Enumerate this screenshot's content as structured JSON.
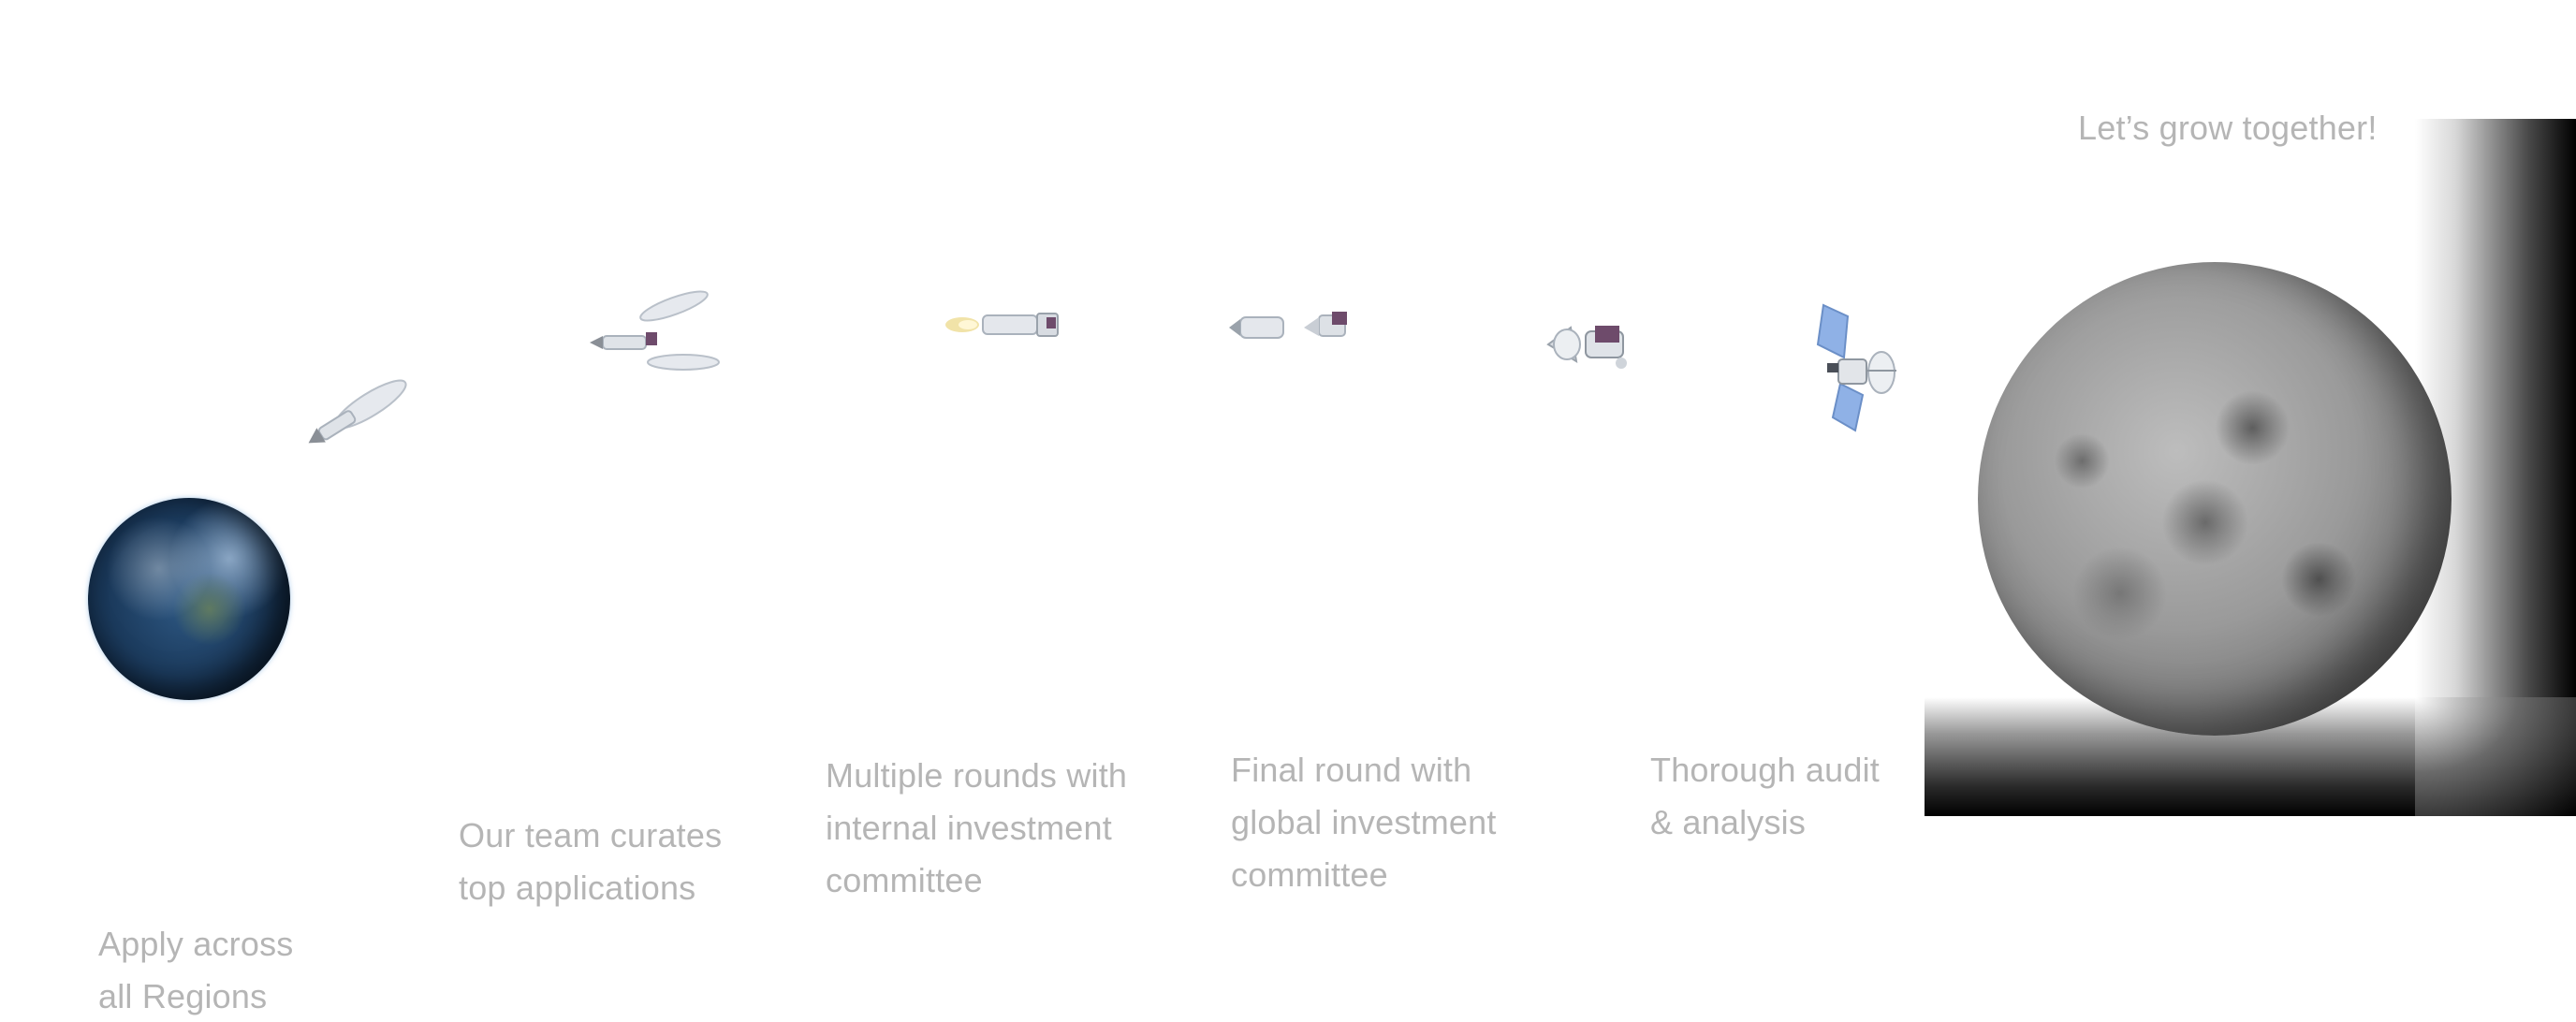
{
  "headline": "Let’s grow together!",
  "steps": [
    {
      "line1": "Apply across",
      "line2": "all Regions"
    },
    {
      "line1": "Our team curates",
      "line2": "top applications"
    },
    {
      "line1": "Multiple rounds with",
      "line2": "internal investment",
      "line3": "committee"
    },
    {
      "line1": "Final round with",
      "line2": "global investment",
      "line3": "committee"
    },
    {
      "line1": "Thorough audit",
      "line2": "& analysis"
    }
  ],
  "images": {
    "start": "earth-icon",
    "end": "moon-icon",
    "stages": [
      "rocket-icon",
      "rocket-fairing-separation-icon",
      "rocket-stage-burn-icon",
      "stage-separation-icon",
      "lander-module-icon",
      "satellite-icon"
    ]
  },
  "colors": {
    "text": "#b5b5b5",
    "background": "#ffffff",
    "shadow": "#000000"
  }
}
